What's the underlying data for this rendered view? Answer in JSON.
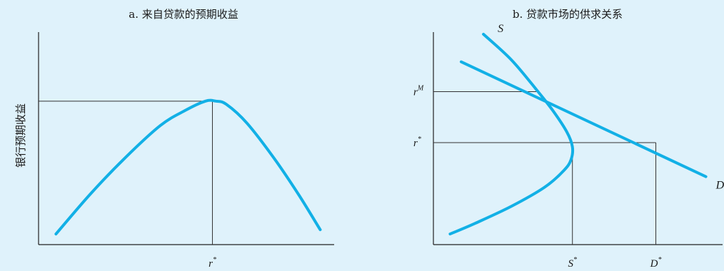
{
  "chart_data": [
    {
      "type": "line",
      "title": "a. 来自贷款的预期收益",
      "xlabel": "",
      "ylabel": "银行预期收益",
      "x_ticks": [
        {
          "value": 5,
          "label": "r",
          "sup": "*"
        }
      ],
      "y_ticks": [],
      "xlim": [
        0,
        8.5
      ],
      "ylim": [
        0,
        10
      ],
      "grid": false,
      "curve_color": "#12b0e6",
      "series": [
        {
          "x": [
            0.5,
            1.5,
            2.5,
            3.5,
            4.2,
            4.8,
            5.1,
            5.4,
            6.0,
            6.8,
            7.5,
            8.1
          ],
          "y": [
            0.5,
            2.4,
            4.1,
            5.6,
            6.3,
            6.75,
            6.75,
            6.6,
            5.7,
            4.0,
            2.3,
            0.7
          ]
        }
      ],
      "guides": [
        {
          "type": "horizontal",
          "y": 6.75,
          "from_x": 0,
          "to_x": 5
        },
        {
          "type": "vertical",
          "x": 5,
          "from_y": 0,
          "to_y": 6.75
        }
      ]
    },
    {
      "type": "line",
      "title": "b. 贷款市场的供求关系",
      "xlabel": "",
      "ylabel": "",
      "x_ticks": [
        {
          "value": 5,
          "label": "S",
          "sup": "*"
        },
        {
          "value": 8,
          "label": "D",
          "sup": "*"
        }
      ],
      "y_ticks": [
        {
          "value": 7.2,
          "label": "r",
          "sup": "M"
        },
        {
          "value": 4.8,
          "label": "r",
          "sup": "*"
        }
      ],
      "xlim": [
        0,
        10.4
      ],
      "ylim": [
        0,
        10
      ],
      "grid": false,
      "curve_color": "#12b0e6",
      "series": [
        {
          "name": "S",
          "x": [
            1.8,
            2.8,
            3.7,
            4.3,
            4.8,
            5.0,
            4.95,
            4.7,
            4.0,
            2.8,
            1.5,
            0.6
          ],
          "y": [
            9.9,
            8.7,
            7.3,
            6.3,
            5.3,
            4.6,
            4.0,
            3.5,
            2.7,
            1.8,
            1.0,
            0.5
          ]
        },
        {
          "name": "D",
          "x": [
            1.0,
            9.8
          ],
          "y": [
            8.6,
            3.2
          ]
        }
      ],
      "guides": [
        {
          "type": "horizontal",
          "y": 7.2,
          "from_x": 0,
          "to_x": 3.7
        },
        {
          "type": "horizontal",
          "y": 4.8,
          "from_x": 0,
          "to_x": 8
        },
        {
          "type": "vertical",
          "x": 5,
          "from_y": 0,
          "to_y": 4.8
        },
        {
          "type": "vertical",
          "x": 8,
          "from_y": 0,
          "to_y": 4.8
        }
      ]
    }
  ]
}
